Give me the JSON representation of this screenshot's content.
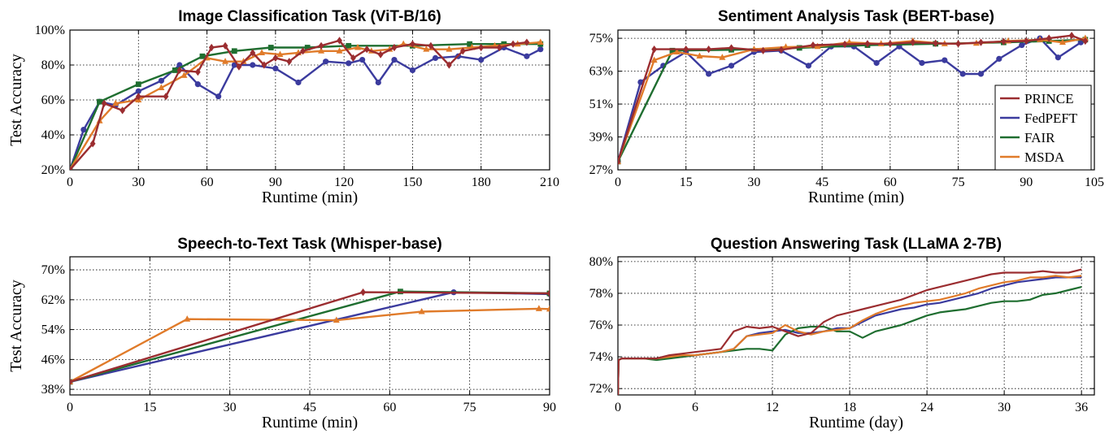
{
  "colors": {
    "PRINCE": "#9b2d30",
    "FedPEFT": "#3b3b9e",
    "FAIR": "#1f6e30",
    "MSDA": "#e07b2a"
  },
  "chart_data": [
    {
      "type": "line",
      "title": "Image Classification Task (ViT-B/16)",
      "xlabel": "Runtime (min)",
      "ylabel": "Test Accuracy",
      "xlim": [
        0,
        210
      ],
      "ylim": [
        20,
        100
      ],
      "xticks": [
        0,
        30,
        60,
        90,
        120,
        150,
        180,
        210
      ],
      "yticks": [
        20,
        40,
        60,
        80,
        100
      ],
      "ysuffix": "%",
      "markers": true,
      "legend": "none",
      "series": [
        {
          "name": "PRINCE",
          "marker": "diamond",
          "x": [
            0,
            10,
            15,
            23,
            30,
            42,
            48,
            56,
            62,
            68,
            74,
            80,
            85,
            90,
            96,
            102,
            110,
            118,
            124,
            130,
            136,
            142,
            150,
            158,
            166,
            172,
            180,
            188,
            194,
            200
          ],
          "y": [
            20,
            35,
            58,
            54,
            62,
            62,
            77,
            76,
            90,
            91,
            79,
            87,
            80,
            84,
            82,
            88,
            91,
            94,
            84,
            89,
            86,
            90,
            92,
            91,
            80,
            88,
            90,
            90,
            92,
            93
          ]
        },
        {
          "name": "FedPEFT",
          "marker": "circle",
          "x": [
            0,
            6,
            13,
            20,
            30,
            40,
            48,
            56,
            65,
            72,
            80,
            90,
            100,
            112,
            122,
            128,
            135,
            142,
            150,
            160,
            170,
            180,
            190,
            200,
            206
          ],
          "y": [
            20,
            43,
            59,
            57,
            65,
            71,
            80,
            69,
            62,
            80,
            80,
            78,
            70,
            82,
            81,
            83,
            70,
            83,
            77,
            84,
            85,
            83,
            90,
            85,
            89
          ]
        },
        {
          "name": "FAIR",
          "marker": "square",
          "x": [
            0,
            13,
            30,
            46,
            58,
            72,
            88,
            104,
            122,
            150,
            175,
            190,
            206
          ],
          "y": [
            20,
            59,
            69,
            77,
            85,
            88,
            90,
            90,
            91,
            91,
            92,
            92,
            92
          ]
        },
        {
          "name": "MSDA",
          "marker": "triangle",
          "x": [
            0,
            13,
            20,
            30,
            40,
            50,
            60,
            68,
            76,
            84,
            92,
            100,
            110,
            118,
            126,
            132,
            140,
            146,
            156,
            166,
            176,
            186,
            196,
            206
          ],
          "y": [
            20,
            48,
            58,
            60,
            67,
            74,
            84,
            82,
            82,
            87,
            86,
            87,
            88,
            88,
            90,
            88,
            89,
            92,
            89,
            89,
            90,
            91,
            92,
            93
          ]
        }
      ]
    },
    {
      "type": "line",
      "title": "Sentiment Analysis Task (BERT-base)",
      "xlabel": "Runtime (min)",
      "ylabel": "",
      "xlim": [
        0,
        105
      ],
      "ylim": [
        27,
        78
      ],
      "xticks": [
        0,
        15,
        30,
        45,
        60,
        75,
        90,
        105
      ],
      "yticks": [
        27,
        39,
        51,
        63,
        75
      ],
      "ysuffix": "%",
      "markers": true,
      "legend": "right",
      "series": [
        {
          "name": "PRINCE",
          "marker": "diamond",
          "x": [
            0,
            8,
            15,
            20,
            25,
            32,
            36,
            43,
            50,
            55,
            60,
            65,
            70,
            75,
            80,
            85,
            90,
            95,
            100,
            103
          ],
          "y": [
            30,
            71,
            71,
            71,
            71.5,
            70.5,
            70.8,
            72.5,
            72.8,
            73,
            73,
            73.5,
            73.2,
            73,
            73.5,
            73.8,
            74,
            75,
            76,
            74
          ]
        },
        {
          "name": "FedPEFT",
          "marker": "circle",
          "x": [
            0,
            5,
            10,
            15,
            20,
            25,
            30,
            36,
            42,
            47,
            52,
            57,
            62,
            67,
            72,
            76,
            80,
            84,
            89,
            93,
            97,
            102
          ],
          "y": [
            30,
            59,
            65,
            70,
            62,
            65,
            70,
            70.5,
            65,
            72,
            72,
            66,
            72,
            66,
            67,
            62,
            62,
            67.5,
            72.5,
            75,
            68,
            73.5
          ]
        },
        {
          "name": "FAIR",
          "marker": "square",
          "x": [
            0,
            12,
            25,
            40,
            55,
            70,
            85,
            95,
            103
          ],
          "y": [
            30,
            70.5,
            70.8,
            71.5,
            72.5,
            73,
            73.5,
            74,
            74.5
          ]
        },
        {
          "name": "MSDA",
          "marker": "triangle",
          "x": [
            0,
            8,
            13,
            18,
            23,
            30,
            37,
            44,
            51,
            58,
            65,
            72,
            79,
            86,
            93,
            98,
            103
          ],
          "y": [
            30,
            67,
            70,
            68.5,
            68,
            71,
            71.8,
            72,
            73.5,
            73,
            74,
            73,
            73.2,
            74,
            74.5,
            73.5,
            75
          ]
        }
      ]
    },
    {
      "type": "line",
      "title": "Speech-to-Text Task (Whisper-base)",
      "xlabel": "Runtime (min)",
      "ylabel": "Test Accuracy",
      "xlim": [
        0,
        90
      ],
      "ylim": [
        36.5,
        73.5
      ],
      "xticks": [
        0,
        15,
        30,
        45,
        60,
        75,
        90
      ],
      "yticks": [
        38,
        46,
        54,
        62,
        70
      ],
      "ysuffix": "%",
      "markers": true,
      "legend": "none",
      "series": [
        {
          "name": "PRINCE",
          "marker": "diamond",
          "x": [
            0,
            55,
            90
          ],
          "y": [
            40,
            64,
            63.7
          ]
        },
        {
          "name": "FedPEFT",
          "marker": "circle",
          "x": [
            0,
            72,
            90
          ],
          "y": [
            40,
            64,
            63.5
          ]
        },
        {
          "name": "FAIR",
          "marker": "square",
          "x": [
            0,
            62,
            90
          ],
          "y": [
            40,
            64.2,
            63.7
          ]
        },
        {
          "name": "MSDA",
          "marker": "triangle",
          "x": [
            0,
            22,
            50,
            66,
            88,
            90
          ],
          "y": [
            40,
            56.8,
            56.5,
            58.8,
            59.6,
            59.5
          ]
        }
      ]
    },
    {
      "type": "line",
      "title": "Question Answering Task (LLaMA 2-7B)",
      "xlabel": "Runtime (day)",
      "ylabel": "",
      "xlim": [
        0,
        37
      ],
      "ylim": [
        71.6,
        80.3
      ],
      "xticks": [
        0,
        6,
        12,
        18,
        24,
        30,
        36
      ],
      "yticks": [
        72,
        74,
        76,
        78,
        80
      ],
      "ysuffix": "%",
      "markers": false,
      "legend": "none",
      "series": [
        {
          "name": "PRINCE",
          "x": [
            0,
            0.05,
            0.3,
            1,
            2,
            3,
            4,
            5,
            6,
            7,
            8,
            9,
            10,
            11,
            12,
            13,
            14,
            15,
            16,
            17,
            18,
            19,
            20,
            21,
            22,
            23,
            24,
            25,
            26,
            27,
            28,
            29,
            30,
            31,
            32,
            33,
            34,
            35,
            36
          ],
          "y": [
            71.5,
            73.8,
            73.9,
            73.9,
            73.9,
            73.9,
            74.1,
            74.2,
            74.3,
            74.4,
            74.5,
            75.6,
            75.9,
            75.8,
            75.9,
            75.6,
            75.3,
            75.5,
            76.2,
            76.6,
            76.8,
            77.0,
            77.2,
            77.4,
            77.6,
            77.9,
            78.2,
            78.4,
            78.6,
            78.8,
            79.0,
            79.2,
            79.3,
            79.3,
            79.3,
            79.4,
            79.3,
            79.3,
            79.5
          ]
        },
        {
          "name": "FedPEFT",
          "x": [
            0,
            0.05,
            0.3,
            1,
            2,
            3,
            4,
            5,
            6,
            7,
            8,
            9,
            10,
            11,
            12,
            13,
            14,
            15,
            16,
            17,
            18,
            19,
            20,
            21,
            22,
            23,
            24,
            25,
            26,
            27,
            28,
            29,
            30,
            31,
            32,
            33,
            34,
            35,
            36
          ],
          "y": [
            71.5,
            73.8,
            73.9,
            73.9,
            73.9,
            73.9,
            74.0,
            74.0,
            74.1,
            74.2,
            74.3,
            74.5,
            75.3,
            75.5,
            75.6,
            75.7,
            75.5,
            75.5,
            75.6,
            75.8,
            75.8,
            76.2,
            76.6,
            76.8,
            77.0,
            77.1,
            77.3,
            77.4,
            77.6,
            77.8,
            78.0,
            78.3,
            78.5,
            78.7,
            78.8,
            78.9,
            79.0,
            79.0,
            79.0
          ]
        },
        {
          "name": "FAIR",
          "x": [
            0,
            0.05,
            0.3,
            1,
            2,
            3,
            4,
            5,
            6,
            7,
            8,
            9,
            10,
            11,
            12,
            13,
            14,
            15,
            16,
            17,
            18,
            19,
            20,
            21,
            22,
            23,
            24,
            25,
            26,
            27,
            28,
            29,
            30,
            31,
            32,
            33,
            34,
            35,
            36
          ],
          "y": [
            71.5,
            73.8,
            73.9,
            73.9,
            73.9,
            73.8,
            73.9,
            74.0,
            74.1,
            74.2,
            74.3,
            74.4,
            74.5,
            74.5,
            74.4,
            75.4,
            75.8,
            75.9,
            75.9,
            75.6,
            75.6,
            75.2,
            75.6,
            75.8,
            76.0,
            76.3,
            76.6,
            76.8,
            76.9,
            77.0,
            77.2,
            77.4,
            77.5,
            77.5,
            77.6,
            77.9,
            78.0,
            78.2,
            78.4
          ]
        },
        {
          "name": "MSDA",
          "x": [
            0,
            0.05,
            0.3,
            1,
            2,
            3,
            4,
            5,
            6,
            7,
            8,
            9,
            10,
            11,
            12,
            13,
            14,
            15,
            16,
            17,
            18,
            19,
            20,
            21,
            22,
            23,
            24,
            25,
            26,
            27,
            28,
            29,
            30,
            31,
            32,
            33,
            34,
            35,
            36
          ],
          "y": [
            71.5,
            73.8,
            73.9,
            73.9,
            73.9,
            73.9,
            74.0,
            74.1,
            74.1,
            74.2,
            74.3,
            74.5,
            75.3,
            75.4,
            75.5,
            76.0,
            75.6,
            75.4,
            75.6,
            75.7,
            75.8,
            76.3,
            76.7,
            77.0,
            77.2,
            77.4,
            77.5,
            77.6,
            77.8,
            78.0,
            78.3,
            78.5,
            78.7,
            78.8,
            79.0,
            79.0,
            79.1,
            79.0,
            79.1
          ]
        }
      ]
    }
  ]
}
